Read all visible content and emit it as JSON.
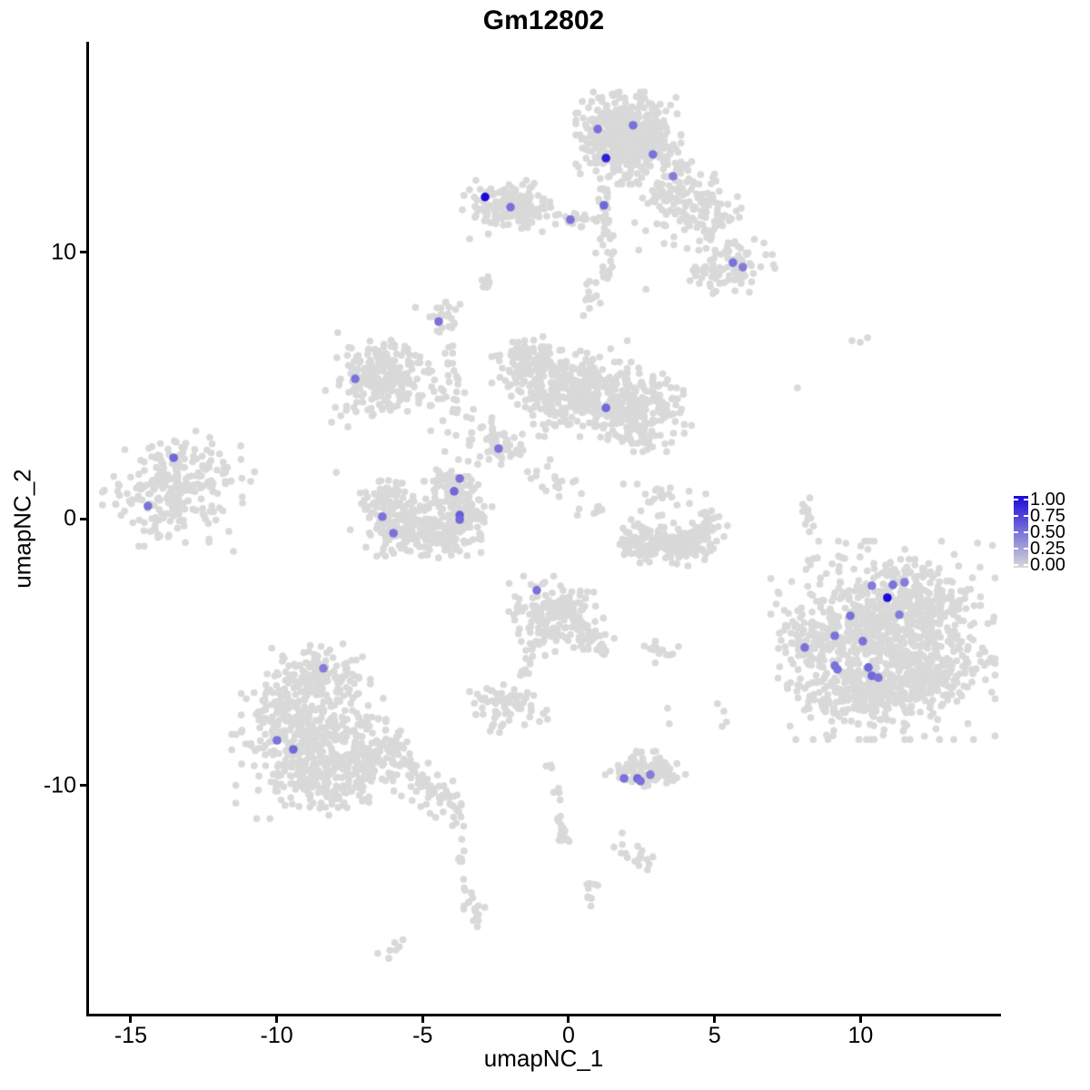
{
  "title": "Gm12802",
  "axes": {
    "x_label": "umapNC_1",
    "y_label": "umapNC_2",
    "x_ticks": [
      {
        "label": "-15",
        "value": -15
      },
      {
        "label": "-10",
        "value": -10
      },
      {
        "label": "-5",
        "value": -5
      },
      {
        "label": "0",
        "value": 0
      },
      {
        "label": "5",
        "value": 5
      },
      {
        "label": "10",
        "value": 10
      }
    ],
    "y_ticks": [
      {
        "label": "10",
        "value": 10
      },
      {
        "label": "0",
        "value": 0
      },
      {
        "label": "-10",
        "value": -10
      }
    ]
  },
  "legend": {
    "labels": [
      {
        "label": "1.00",
        "value": 1.0
      },
      {
        "label": "0.75",
        "value": 0.75
      },
      {
        "label": "0.50",
        "value": 0.5
      },
      {
        "label": "0.25",
        "value": 0.25
      },
      {
        "label": "0.00",
        "value": 0.0
      }
    ]
  },
  "colors": {
    "point_gray": "#D9D9D9",
    "scale_low": "#D9D9D9",
    "scale_high": "#1A0AD9",
    "axis": "#000000",
    "text": "#000000",
    "background": "#FFFFFF"
  },
  "chart_data": {
    "type": "scatter",
    "title": "Gm12802",
    "xlabel": "umapNC_1",
    "ylabel": "umapNC_2",
    "xlim": [
      -16.46,
      14.75
    ],
    "ylim": [
      -18.59,
      17.87
    ],
    "grid": false,
    "legend_position": "right",
    "color_scale": {
      "low": "#D9D9D9",
      "high": "#1A0AD9",
      "domain": [
        0,
        1
      ]
    },
    "seed": 20,
    "point_radius_px": 3.8,
    "highlight_radius_px": 4.8,
    "background_clusters": [
      {
        "t": "b",
        "name": "top-main",
        "x": 2.05,
        "y": 14.29,
        "sx": 0.75,
        "sy": 0.72,
        "n": 520
      },
      {
        "t": "b",
        "name": "top-left-ear",
        "x": -2.05,
        "y": 11.7,
        "sx": 0.67,
        "sy": 0.42,
        "n": 170
      },
      {
        "t": "s",
        "name": "top-ear-bridge",
        "x1": -0.65,
        "y1": 11.12,
        "x2": 1.0,
        "y2": 11.29,
        "w": 0.12,
        "n": 25
      },
      {
        "t": "s",
        "name": "top-neck",
        "x1": 1.24,
        "y1": 12.49,
        "x2": 1.34,
        "y2": 8.98,
        "w": 0.18,
        "n": 40
      },
      {
        "t": "s",
        "name": "top-right-arm",
        "x1": 3.17,
        "y1": 12.83,
        "x2": 5.41,
        "y2": 10.78,
        "w": 0.55,
        "n": 150
      },
      {
        "t": "b",
        "name": "top-arm-tip",
        "x": 5.79,
        "y": 9.59,
        "sx": 0.55,
        "sy": 0.45,
        "n": 70
      },
      {
        "t": "s",
        "name": "top-arm-fringe",
        "x1": 4.32,
        "y1": 9.59,
        "x2": 5.26,
        "y2": 8.74,
        "w": 0.3,
        "n": 16
      },
      {
        "t": "b",
        "name": "top-arm-scatter",
        "x": 2.77,
        "y": 10.78,
        "sx": 0.7,
        "sy": 0.9,
        "n": 18
      },
      {
        "t": "b",
        "name": "mid-left-lobe",
        "x": -1.43,
        "y": 5.84,
        "sx": 0.5,
        "sy": 0.45,
        "n": 110
      },
      {
        "t": "b",
        "name": "mid-main",
        "x": -0.03,
        "y": 4.89,
        "sx": 0.85,
        "sy": 0.75,
        "n": 260
      },
      {
        "t": "b",
        "name": "mid-right-lobe",
        "x": 2.05,
        "y": 4.21,
        "sx": 0.9,
        "sy": 0.7,
        "n": 280
      },
      {
        "t": "s",
        "name": "mid-bottom-tip",
        "x1": 2.3,
        "y1": 3.53,
        "x2": 2.83,
        "y2": 2.88,
        "w": 0.2,
        "n": 18
      },
      {
        "t": "s",
        "name": "mid-top-wisp",
        "x1": 0.81,
        "y1": 9.25,
        "x2": 0.68,
        "y2": 7.55,
        "w": 0.2,
        "n": 12
      },
      {
        "t": "b",
        "name": "left-mid-blob",
        "x": -6.41,
        "y": 5.43,
        "sx": 0.8,
        "sy": 0.65,
        "n": 210
      },
      {
        "t": "s",
        "name": "left-mid-trail",
        "x1": -5.1,
        "y1": 4.89,
        "x2": -2.52,
        "y2": 3.73,
        "w": 0.4,
        "n": 26
      },
      {
        "t": "b",
        "name": "small-knot",
        "x": -4.32,
        "y": 7.55,
        "sx": 0.4,
        "sy": 0.3,
        "n": 26
      },
      {
        "t": "s",
        "name": "small-knot-tail",
        "x1": -4.11,
        "y1": 6.59,
        "x2": -3.67,
        "y2": 4.55,
        "w": 0.12,
        "n": 16
      },
      {
        "t": "b",
        "name": "center-dot-blob",
        "x": -2.4,
        "y": 2.71,
        "sx": 0.35,
        "sy": 0.35,
        "n": 40
      },
      {
        "t": "b",
        "name": "center-scatter",
        "x": -3.42,
        "y": 2.37,
        "sx": 0.85,
        "sy": 0.55,
        "n": 20
      },
      {
        "t": "s",
        "name": "center-diagonal",
        "x1": -1.52,
        "y1": 2.16,
        "x2": 1.12,
        "y2": 0.12,
        "w": 0.25,
        "n": 26
      },
      {
        "t": "b",
        "name": "crescent-w1",
        "x": -6.28,
        "y": 0.63,
        "sx": 0.5,
        "sy": 0.5,
        "n": 90
      },
      {
        "t": "b",
        "name": "crescent-w2",
        "x": -5.69,
        "y": -0.43,
        "sx": 0.55,
        "sy": 0.4,
        "n": 110
      },
      {
        "t": "b",
        "name": "crescent-w3",
        "x": -4.32,
        "y": -0.66,
        "sx": 0.55,
        "sy": 0.38,
        "n": 95
      },
      {
        "t": "b",
        "name": "crescent-w4",
        "x": -3.58,
        "y": 0.32,
        "sx": 0.4,
        "sy": 0.45,
        "n": 75
      },
      {
        "t": "b",
        "name": "crescent-w5",
        "x": -4.01,
        "y": 1.21,
        "sx": 0.38,
        "sy": 0.35,
        "n": 55
      },
      {
        "t": "b",
        "name": "crescent-fill",
        "x": -4.92,
        "y": 0.22,
        "sx": 0.6,
        "sy": 0.5,
        "n": 35
      },
      {
        "t": "b",
        "name": "far-left-blob",
        "x": -13.57,
        "y": 1.14,
        "sx": 1.0,
        "sy": 0.9,
        "n": 230
      },
      {
        "t": "b",
        "name": "far-left-fringe",
        "x": -11.76,
        "y": 1.89,
        "sx": 0.55,
        "sy": 0.45,
        "n": 12
      },
      {
        "t": "b",
        "name": "right-crescent-1",
        "x": 2.3,
        "y": -0.66,
        "sx": 0.32,
        "sy": 0.3,
        "n": 35
      },
      {
        "t": "b",
        "name": "right-crescent-2",
        "x": 2.99,
        "y": -1.01,
        "sx": 0.45,
        "sy": 0.3,
        "n": 70
      },
      {
        "t": "b",
        "name": "right-crescent-3",
        "x": 3.76,
        "y": -1.04,
        "sx": 0.5,
        "sy": 0.3,
        "n": 75
      },
      {
        "t": "b",
        "name": "right-crescent-4",
        "x": 4.48,
        "y": -0.63,
        "sx": 0.4,
        "sy": 0.33,
        "n": 45
      },
      {
        "t": "b",
        "name": "right-crescent-5",
        "x": 4.88,
        "y": -0.15,
        "sx": 0.28,
        "sy": 0.3,
        "n": 22
      },
      {
        "t": "b",
        "name": "right-crescent-scatter",
        "x": 3.14,
        "y": 0.87,
        "sx": 0.65,
        "sy": 0.55,
        "n": 24
      },
      {
        "t": "s",
        "name": "right-strand",
        "x1": 8.09,
        "y1": 0.97,
        "x2": 8.34,
        "y2": -0.63,
        "w": 0.1,
        "n": 13
      },
      {
        "t": "b",
        "name": "lower-mid-blob",
        "x": -0.44,
        "y": -3.63,
        "sx": 0.7,
        "sy": 0.62,
        "n": 170
      },
      {
        "t": "s",
        "name": "lower-mid-arm",
        "x1": 0.5,
        "y1": -4.38,
        "x2": 1.31,
        "y2": -4.96,
        "w": 0.25,
        "n": 22
      },
      {
        "t": "s",
        "name": "lower-mid-tail",
        "x1": -1.28,
        "y1": -4.58,
        "x2": -1.56,
        "y2": -6.15,
        "w": 0.1,
        "n": 13
      },
      {
        "t": "s",
        "name": "lower-chain-1",
        "x1": -0.65,
        "y1": -9.15,
        "x2": -0.12,
        "y2": -11.81,
        "w": 0.1,
        "n": 16
      },
      {
        "t": "b",
        "name": "lower-chain-knot",
        "x": -0.19,
        "y": -12.01,
        "sx": 0.18,
        "sy": 0.18,
        "n": 7
      },
      {
        "t": "b",
        "name": "lower-chain-2",
        "x": 0.75,
        "y": -13.99,
        "sx": 0.18,
        "sy": 0.25,
        "n": 9
      },
      {
        "t": "b",
        "name": "lower-arrow-blob",
        "x": 2.4,
        "y": -12.56,
        "sx": 0.4,
        "sy": 0.25,
        "r": -20,
        "n": 16
      },
      {
        "t": "b",
        "name": "small-bar-blob",
        "x": 3.02,
        "y": -4.99,
        "sx": 0.35,
        "sy": 0.17,
        "n": 14
      },
      {
        "t": "b",
        "name": "small-left-cluster",
        "x": -2.18,
        "y": -7.0,
        "sx": 0.55,
        "sy": 0.42,
        "n": 65
      },
      {
        "t": "b",
        "name": "bottom-small-1",
        "x": 1.93,
        "y": -9.56,
        "sx": 0.28,
        "sy": 0.25,
        "n": 22
      },
      {
        "t": "b",
        "name": "bottom-small-2",
        "x": 2.49,
        "y": -9.52,
        "sx": 0.3,
        "sy": 0.28,
        "n": 30
      },
      {
        "t": "b",
        "name": "bottom-small-3",
        "x": 2.99,
        "y": -9.45,
        "sx": 0.3,
        "sy": 0.25,
        "n": 28
      },
      {
        "t": "b",
        "name": "bottom-small-4",
        "x": 3.42,
        "y": -9.69,
        "sx": 0.25,
        "sy": 0.2,
        "n": 12
      },
      {
        "t": "b",
        "name": "bottom-small-top",
        "x": 2.49,
        "y": -8.84,
        "sx": 0.3,
        "sy": 0.15,
        "n": 7
      },
      {
        "t": "b",
        "name": "bottom-left-top",
        "x": -8.59,
        "y": -5.88,
        "sx": 0.75,
        "sy": 0.5,
        "n": 130
      },
      {
        "t": "b",
        "name": "bottom-left-mid",
        "x": -8.9,
        "y": -7.72,
        "sx": 1.1,
        "sy": 0.8,
        "n": 300
      },
      {
        "t": "b",
        "name": "bottom-left-base",
        "x": -8.4,
        "y": -9.56,
        "sx": 1.25,
        "sy": 0.7,
        "n": 280
      },
      {
        "t": "b",
        "name": "bottom-left-east",
        "x": -6.47,
        "y": -8.74,
        "sx": 0.65,
        "sy": 0.45,
        "n": 80
      },
      {
        "t": "s",
        "name": "bottom-left-tail",
        "x1": -5.85,
        "y1": -9.25,
        "x2": -3.7,
        "y2": -10.95,
        "w": 0.3,
        "n": 60
      },
      {
        "t": "s",
        "name": "bottom-left-chain1",
        "x1": -3.89,
        "y1": -11.12,
        "x2": -3.64,
        "y2": -12.96,
        "w": 0.1,
        "n": 14
      },
      {
        "t": "s",
        "name": "bottom-left-chain2",
        "x1": -3.61,
        "y1": -13.44,
        "x2": -3.02,
        "y2": -15.28,
        "w": 0.15,
        "n": 18
      },
      {
        "t": "b",
        "name": "bottom-left-end",
        "x": -5.94,
        "y": -16.06,
        "sx": 0.3,
        "sy": 0.15,
        "r": 35,
        "n": 7
      },
      {
        "t": "b",
        "name": "right-main",
        "x": 10.77,
        "y": -4.55,
        "sx": 1.6,
        "sy": 1.55,
        "n": 800
      },
      {
        "t": "b",
        "name": "right-top-bulge",
        "x": 11.95,
        "y": -3.19,
        "sx": 0.9,
        "sy": 0.7,
        "n": 150
      },
      {
        "t": "b",
        "name": "right-left-arm",
        "x": 8.52,
        "y": -4.38,
        "sx": 0.55,
        "sy": 0.5,
        "n": 70
      },
      {
        "t": "b",
        "name": "right-bottom-bulge",
        "x": 9.77,
        "y": -6.59,
        "sx": 0.95,
        "sy": 0.55,
        "n": 130
      },
      {
        "t": "b",
        "name": "right-se-bulge",
        "x": 12.26,
        "y": -6.08,
        "sx": 0.8,
        "sy": 0.6,
        "n": 110
      },
      {
        "t": "b",
        "name": "tiny-diagonal-blob",
        "x": -2.68,
        "y": 8.91,
        "sx": 0.22,
        "sy": 0.12,
        "r": 40,
        "n": 9
      }
    ],
    "stray_points": [
      [
        -3.39,
        10.51
      ],
      [
        7.84,
        4.92
      ],
      [
        9.71,
        6.69
      ],
      [
        9.99,
        6.63
      ],
      [
        10.24,
        6.8
      ],
      [
        8.28,
        -1.72
      ],
      [
        3.39,
        -7.1
      ],
      [
        3.45,
        -7.68
      ],
      [
        5.1,
        -6.93
      ],
      [
        5.32,
        -7.21
      ],
      [
        5.41,
        -7.61
      ],
      [
        5.26,
        -7.78
      ],
      [
        -0.75,
        -7.17
      ],
      [
        -0.72,
        -7.51
      ],
      [
        1.84,
        -12.21
      ],
      [
        -10.89,
        1.41
      ],
      [
        -11.64,
        -0.46
      ],
      [
        -12.32,
        -0.87
      ],
      [
        -11.48,
        -1.21
      ],
      [
        -12.48,
        0.12
      ],
      [
        -8.12,
        3.63
      ],
      [
        -7.56,
        3.46
      ],
      [
        -7.96,
        1.75
      ]
    ],
    "expressing_points": [
      {
        "x": 1.0,
        "y": 14.63,
        "v": 0.5
      },
      {
        "x": 2.21,
        "y": 14.77,
        "v": 0.5
      },
      {
        "x": 1.28,
        "y": 13.54,
        "v": 0.9
      },
      {
        "x": 2.89,
        "y": 13.68,
        "v": 0.5
      },
      {
        "x": 3.58,
        "y": 12.86,
        "v": 0.45
      },
      {
        "x": -2.86,
        "y": 12.08,
        "v": 1.0
      },
      {
        "x": -1.99,
        "y": 11.7,
        "v": 0.5
      },
      {
        "x": 0.06,
        "y": 11.23,
        "v": 0.5
      },
      {
        "x": 1.21,
        "y": 11.77,
        "v": 0.55
      },
      {
        "x": 5.63,
        "y": 9.62,
        "v": 0.5
      },
      {
        "x": 5.97,
        "y": 9.45,
        "v": 0.45
      },
      {
        "x": -7.31,
        "y": 5.26,
        "v": 0.5
      },
      {
        "x": -4.45,
        "y": 7.41,
        "v": 0.5
      },
      {
        "x": 1.28,
        "y": 4.17,
        "v": 0.55
      },
      {
        "x": -2.4,
        "y": 2.64,
        "v": 0.5
      },
      {
        "x": -3.73,
        "y": 1.52,
        "v": 0.5
      },
      {
        "x": -3.92,
        "y": 1.04,
        "v": 0.55
      },
      {
        "x": -3.73,
        "y": 0.15,
        "v": 0.6
      },
      {
        "x": -3.73,
        "y": -0.02,
        "v": 0.55
      },
      {
        "x": -6.38,
        "y": 0.09,
        "v": 0.5
      },
      {
        "x": -6.0,
        "y": -0.53,
        "v": 0.5
      },
      {
        "x": -13.53,
        "y": 2.3,
        "v": 0.55
      },
      {
        "x": -14.41,
        "y": 0.49,
        "v": 0.5
      },
      {
        "x": -1.09,
        "y": -2.67,
        "v": 0.5
      },
      {
        "x": 1.9,
        "y": -9.73,
        "v": 0.5
      },
      {
        "x": 2.36,
        "y": -9.73,
        "v": 0.55
      },
      {
        "x": 2.46,
        "y": -9.83,
        "v": 0.5
      },
      {
        "x": 2.8,
        "y": -9.59,
        "v": 0.45
      },
      {
        "x": -8.4,
        "y": -5.6,
        "v": 0.45
      },
      {
        "x": -9.99,
        "y": -8.3,
        "v": 0.5
      },
      {
        "x": -9.43,
        "y": -8.64,
        "v": 0.55
      },
      {
        "x": 10.39,
        "y": -2.5,
        "v": 0.45
      },
      {
        "x": 11.11,
        "y": -2.47,
        "v": 0.5
      },
      {
        "x": 11.51,
        "y": -2.37,
        "v": 0.45
      },
      {
        "x": 10.92,
        "y": -2.95,
        "v": 1.0
      },
      {
        "x": 9.65,
        "y": -3.63,
        "v": 0.5
      },
      {
        "x": 11.33,
        "y": -3.59,
        "v": 0.45
      },
      {
        "x": 9.12,
        "y": -4.38,
        "v": 0.5
      },
      {
        "x": 8.09,
        "y": -4.82,
        "v": 0.5
      },
      {
        "x": 10.08,
        "y": -4.58,
        "v": 0.5
      },
      {
        "x": 9.12,
        "y": -5.5,
        "v": 0.5
      },
      {
        "x": 9.21,
        "y": -5.64,
        "v": 0.5
      },
      {
        "x": 10.27,
        "y": -5.57,
        "v": 0.55
      },
      {
        "x": 10.39,
        "y": -5.88,
        "v": 0.55
      },
      {
        "x": 10.61,
        "y": -5.95,
        "v": 0.5
      }
    ]
  }
}
